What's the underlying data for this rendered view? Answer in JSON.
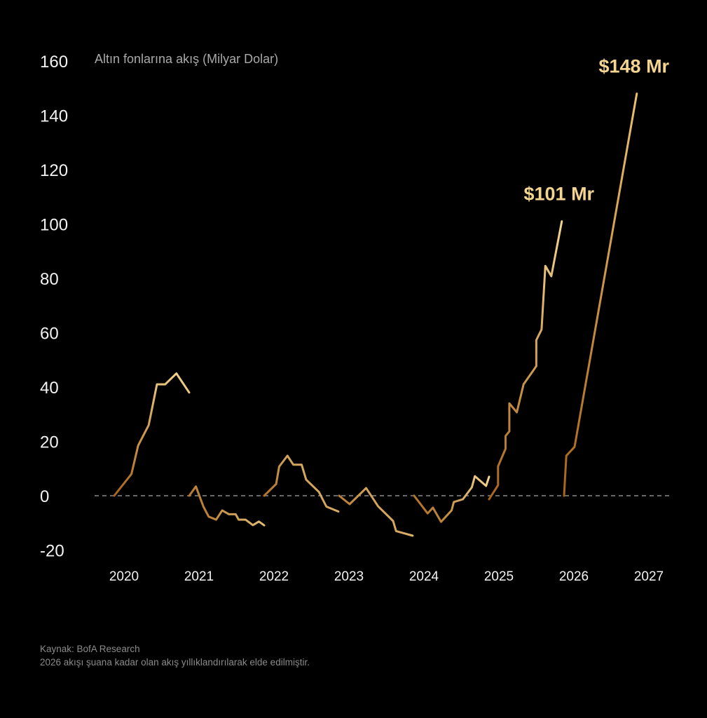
{
  "chart_data": {
    "type": "line",
    "title": "Altın fonlarına akış (Milyar Dolar)",
    "xlabel": "",
    "ylabel": "",
    "ylim": [
      -20,
      160
    ],
    "xlim": [
      2020,
      2027
    ],
    "y_ticks": [
      "160",
      "140",
      "120",
      "100",
      "80",
      "60",
      "40",
      "20",
      "0",
      "-20"
    ],
    "y_tick_values": [
      160,
      140,
      120,
      100,
      80,
      60,
      40,
      20,
      0,
      -20
    ],
    "x_ticks": [
      "2020",
      "2021",
      "2022",
      "2023",
      "2024",
      "2025",
      "2026",
      "2027"
    ],
    "zero_line": "dashed",
    "grid": false,
    "gradient_colors": [
      "#a8641a",
      "#f3d590"
    ],
    "series": [
      {
        "x": [
          2020.0,
          2020.23,
          2020.32,
          2020.46,
          2020.57,
          2020.68,
          2020.83,
          2021.0
        ],
        "y": [
          0,
          8,
          18.5,
          26,
          41,
          41,
          45,
          38
        ]
      },
      {
        "x": [
          2021.0,
          2021.09,
          2021.19,
          2021.26,
          2021.36,
          2021.44,
          2021.53,
          2021.62,
          2021.66,
          2021.75,
          2021.85,
          2021.93,
          2022.0
        ],
        "y": [
          0,
          3.4,
          -4,
          -7.7,
          -8.8,
          -5.4,
          -6.8,
          -6.8,
          -8.8,
          -8.8,
          -10.8,
          -9.5,
          -10.9
        ]
      },
      {
        "x": [
          2022.0,
          2022.16,
          2022.2,
          2022.31,
          2022.39,
          2022.5,
          2022.56,
          2022.73,
          2022.83,
          2022.99
        ],
        "y": [
          0,
          4.3,
          10.7,
          14.7,
          11.4,
          11.4,
          5.9,
          1.4,
          -4,
          -5.8
        ]
      },
      {
        "x": [
          2023.0,
          2023.14,
          2023.36,
          2023.52,
          2023.72,
          2023.76,
          2023.98
        ],
        "y": [
          0,
          -3.1,
          2.8,
          -3.9,
          -9.3,
          -13,
          -14.7
        ]
      },
      {
        "x": [
          2024.0,
          2024.18,
          2024.25,
          2024.36,
          2024.5,
          2024.53,
          2024.65,
          2024.77,
          2024.81,
          2024.96,
          2025.0
        ],
        "y": [
          0,
          -6.5,
          -4.4,
          -9.6,
          -5.4,
          -2.3,
          -1.3,
          3.1,
          7.2,
          3.6,
          7
        ]
      },
      {
        "x": [
          2025.0,
          2025.12,
          2025.12,
          2025.22,
          2025.22,
          2025.27,
          2025.27,
          2025.37,
          2025.46,
          2025.63,
          2025.63,
          2025.7,
          2025.75,
          2025.83,
          2025.97
        ],
        "y": [
          -1.3,
          3.9,
          10.8,
          17.3,
          22,
          23.7,
          34,
          30.7,
          41,
          47.7,
          57.3,
          61.2,
          84.6,
          80.8,
          101
        ]
      },
      {
        "x": [
          2026.0,
          2026.03,
          2026.14,
          2026.97
        ],
        "y": [
          0,
          14.7,
          18,
          148
        ]
      }
    ],
    "annotations": [
      {
        "text": "$101 Mr",
        "x": 2025.97,
        "y": 101
      },
      {
        "text": "$148 Mr",
        "x": 2026.97,
        "y": 148
      }
    ]
  },
  "footer": {
    "source": "Kaynak: BofA Research",
    "note": "2026 akışı şuana kadar olan akış yıllıklandırılarak elde edilmiştir."
  }
}
